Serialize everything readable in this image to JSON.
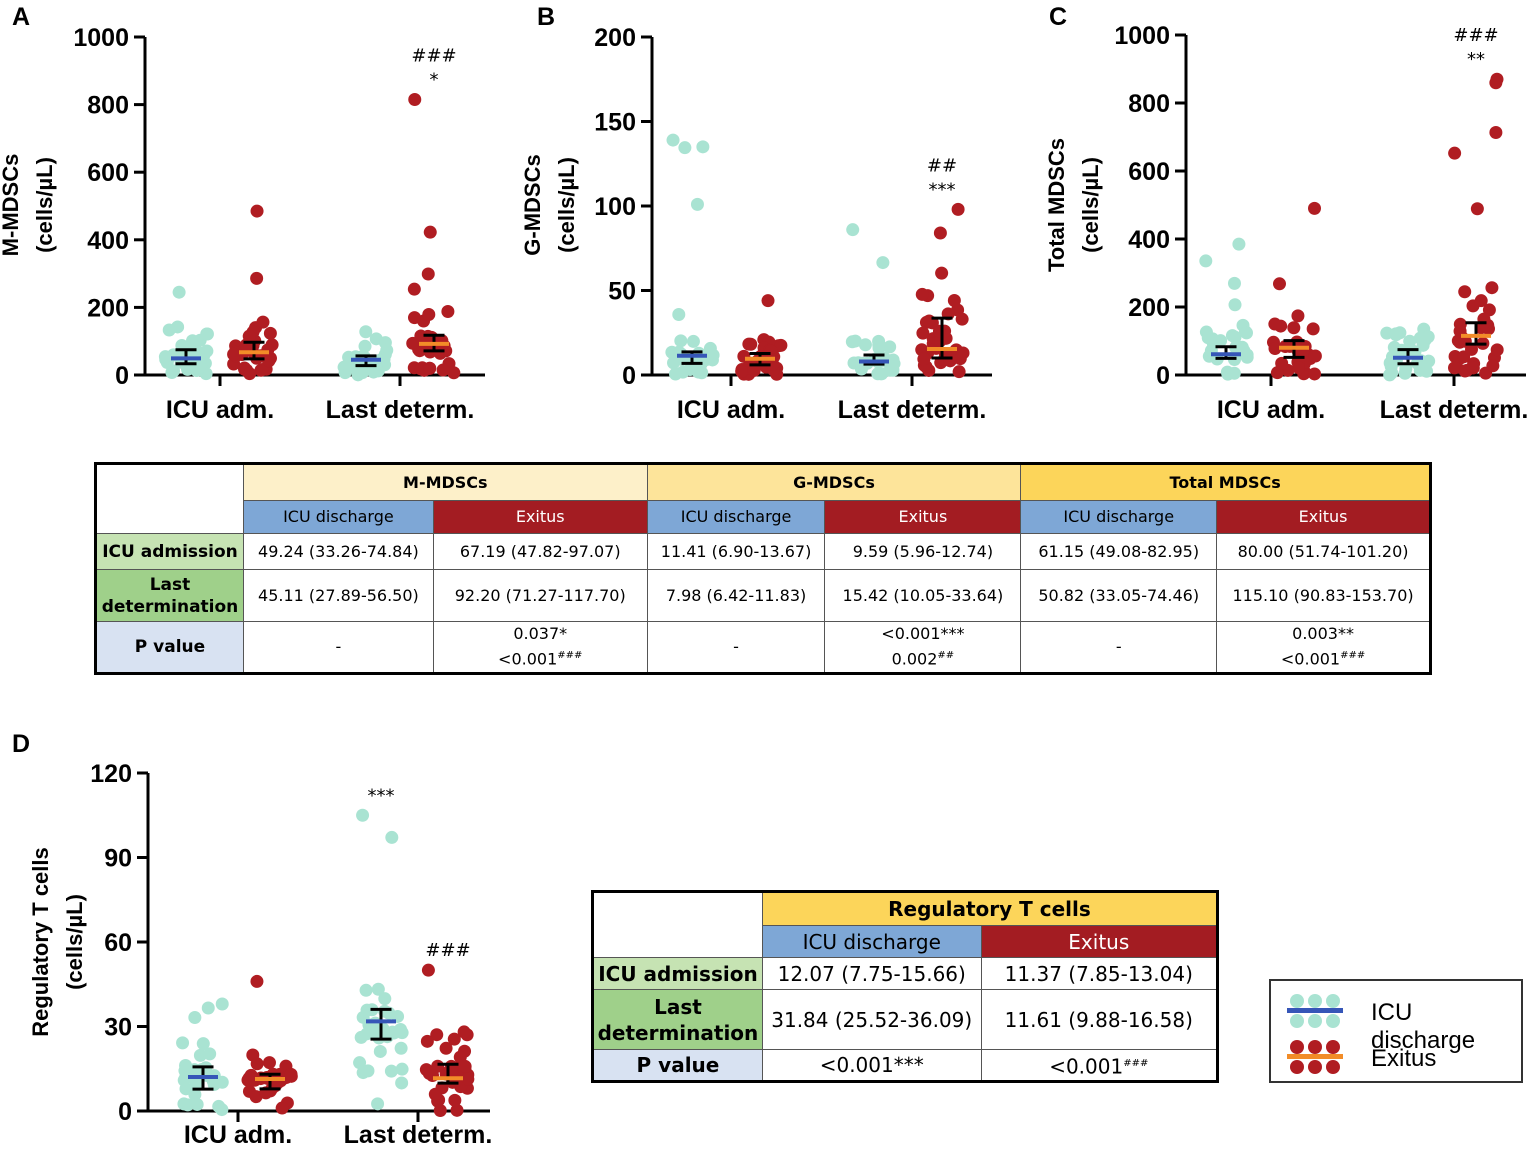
{
  "colors": {
    "discharge": "#a9e3d2",
    "exitus": "#b01d22",
    "discharge_line": "#3656b8",
    "exitus_line": "#f28c28"
  },
  "panels": [
    "A",
    "B",
    "C",
    "D"
  ],
  "chart_data": [
    {
      "type": "scatter",
      "panel": "A",
      "ylabel": "M-MDSCs",
      "ylabel2": "(cells/µL)",
      "ylim": [
        0,
        1000
      ],
      "yticks": [
        0,
        200,
        400,
        600,
        800,
        1000
      ],
      "categories": [
        "ICU adm.",
        "Last determ."
      ],
      "series": [
        {
          "name": "ICU discharge",
          "groups": [
            {
              "median": 49.24,
              "q1": 33.26,
              "q3": 74.84,
              "max": 245,
              "n": 32,
              "annot": []
            },
            {
              "median": 45.11,
              "q1": 27.89,
              "q3": 56.5,
              "max": 128,
              "n": 30,
              "annot": []
            }
          ]
        },
        {
          "name": "Exitus",
          "groups": [
            {
              "median": 67.19,
              "q1": 47.82,
              "q3": 97.07,
              "max": 485,
              "n": 32,
              "annot": []
            },
            {
              "median": 92.2,
              "q1": 71.27,
              "q3": 117.7,
              "max": 815,
              "n": 36,
              "annot": [
                "###",
                "*"
              ]
            }
          ]
        }
      ]
    },
    {
      "type": "scatter",
      "panel": "B",
      "ylabel": "G-MDSCs",
      "ylabel2": "(cells/µL)",
      "ylim": [
        0,
        200
      ],
      "yticks": [
        0,
        50,
        100,
        150,
        200
      ],
      "categories": [
        "ICU adm.",
        "Last determ."
      ],
      "series": [
        {
          "name": "ICU discharge",
          "groups": [
            {
              "median": 11.41,
              "q1": 6.9,
              "q3": 13.67,
              "max": 139,
              "n": 32,
              "annot": []
            },
            {
              "median": 7.98,
              "q1": 6.42,
              "q3": 11.83,
              "max": 86,
              "n": 30,
              "annot": []
            }
          ]
        },
        {
          "name": "Exitus",
          "groups": [
            {
              "median": 9.59,
              "q1": 5.96,
              "q3": 12.74,
              "max": 44,
              "n": 32,
              "annot": []
            },
            {
              "median": 15.42,
              "q1": 10.05,
              "q3": 33.64,
              "max": 98,
              "n": 36,
              "annot": [
                "##",
                "***"
              ]
            }
          ]
        }
      ]
    },
    {
      "type": "scatter",
      "panel": "C",
      "ylabel": "Total MDSCs",
      "ylabel2": "(cells/µL)",
      "ylim": [
        0,
        1000
      ],
      "yticks": [
        0,
        200,
        400,
        600,
        800,
        1000
      ],
      "categories": [
        "ICU adm.",
        "Last determ."
      ],
      "series": [
        {
          "name": "ICU discharge",
          "groups": [
            {
              "median": 61.15,
              "q1": 49.08,
              "q3": 82.95,
              "max": 385,
              "n": 32,
              "annot": []
            },
            {
              "median": 50.82,
              "q1": 33.05,
              "q3": 74.46,
              "max": 135,
              "n": 30,
              "annot": []
            }
          ]
        },
        {
          "name": "Exitus",
          "groups": [
            {
              "median": 80.0,
              "q1": 51.74,
              "q3": 101.2,
              "max": 490,
              "n": 32,
              "annot": []
            },
            {
              "median": 115.1,
              "q1": 90.83,
              "q3": 153.7,
              "max": 870,
              "n": 36,
              "annot": [
                "###",
                "**"
              ]
            }
          ]
        }
      ]
    },
    {
      "type": "scatter",
      "panel": "D",
      "ylabel": "Regulatory T cells",
      "ylabel2": "(cells/µL)",
      "ylim": [
        0,
        120
      ],
      "yticks": [
        0,
        30,
        60,
        90,
        120
      ],
      "categories": [
        "ICU adm.",
        "Last determ."
      ],
      "series": [
        {
          "name": "ICU discharge",
          "groups": [
            {
              "median": 12.07,
              "q1": 7.75,
              "q3": 15.66,
              "max": 38,
              "n": 32,
              "annot": []
            },
            {
              "median": 31.84,
              "q1": 25.52,
              "q3": 36.09,
              "max": 105,
              "n": 36,
              "annot": [
                "***"
              ]
            }
          ]
        },
        {
          "name": "Exitus",
          "groups": [
            {
              "median": 11.37,
              "q1": 7.85,
              "q3": 13.04,
              "max": 46,
              "n": 32,
              "annot": []
            },
            {
              "median": 11.61,
              "q1": 9.88,
              "q3": 16.58,
              "max": 50,
              "n": 34,
              "annot": [
                "###"
              ]
            }
          ]
        }
      ]
    }
  ],
  "table_mdsc": {
    "groups": [
      "M-MDSCs",
      "G-MDSCs",
      "Total MDSCs"
    ],
    "sub": [
      "ICU discharge",
      "Exitus",
      "ICU discharge",
      "Exitus",
      "ICU discharge",
      "Exitus"
    ],
    "row_adm": {
      "label": "ICU admission",
      "cells": [
        "49.24 (33.26-74.84)",
        "67.19 (47.82-97.07)",
        "11.41 (6.90-13.67)",
        "9.59 (5.96-12.74)",
        "61.15 (49.08-82.95)",
        "80.00 (51.74-101.20)"
      ]
    },
    "row_last": {
      "label1": "Last",
      "label2": "determination",
      "cells": [
        "45.11 (27.89-56.50)",
        "92.20 (71.27-117.70)",
        "7.98 (6.42-11.83)",
        "15.42 (10.05-33.64)",
        "50.82 (33.05-74.46)",
        "115.10 (90.83-153.70)"
      ]
    },
    "row_p": {
      "label": "P value",
      "c1": "-",
      "c2a": "0.037*",
      "c2b": "<0.001",
      "c2b_sup": "###",
      "c3": "-",
      "c4a": "<0.001***",
      "c4b": "0.002",
      "c4b_sup": "##",
      "c5": "-",
      "c6a": "0.003**",
      "c6b": "<0.001",
      "c6b_sup": "###"
    }
  },
  "table_treg": {
    "title": "Regulatory T cells",
    "sub": [
      "ICU discharge",
      "Exitus"
    ],
    "row_adm": {
      "label": "ICU admission",
      "cells": [
        "12.07 (7.75-15.66)",
        "11.37 (7.85-13.04)"
      ]
    },
    "row_last": {
      "label1": "Last",
      "label2": "determination",
      "cells": [
        "31.84 (25.52-36.09)",
        "11.61 (9.88-16.58)"
      ]
    },
    "row_p": {
      "label": "P value",
      "c1": "<0.001***",
      "c2": "<0.001",
      "c2_sup": "###"
    }
  },
  "legend": {
    "items": [
      "ICU discharge",
      "Exitus"
    ]
  }
}
